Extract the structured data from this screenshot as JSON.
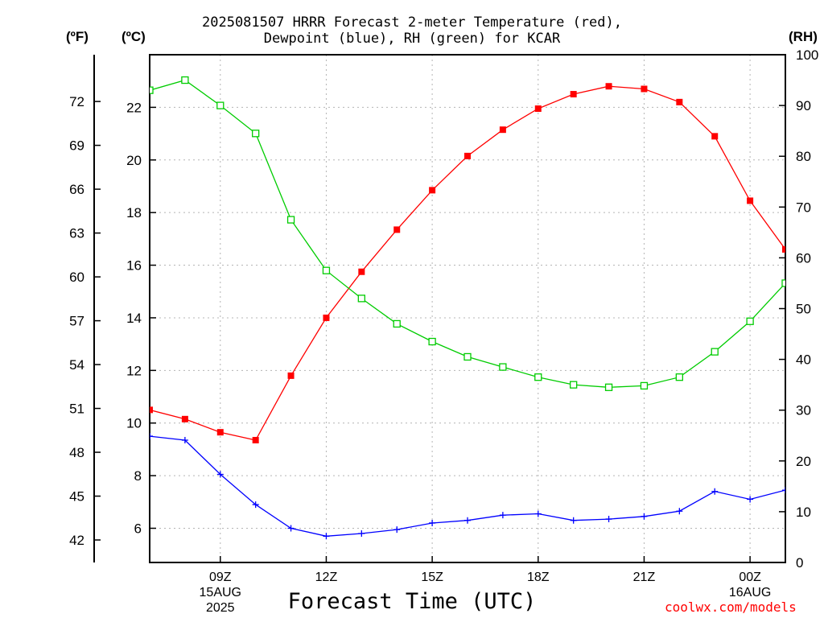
{
  "title_line1": "2025081507 HRRR Forecast 2-meter Temperature (red),",
  "title_line2": "Dewpoint (blue), RH (green) for KCAR",
  "units": {
    "f": "(ºF)",
    "c": "(ºC)",
    "rh": "(RH)"
  },
  "xlabel": "Forecast Time (UTC)",
  "credit": "coolwx.com/models",
  "colors": {
    "temperature": "#ff0000",
    "dewpoint": "#0000ff",
    "rh": "#00cc00",
    "grid": "#b4b4b4"
  },
  "chart_data": {
    "type": "line",
    "x_hours": [
      7,
      8,
      9,
      10,
      11,
      12,
      13,
      14,
      15,
      16,
      17,
      18,
      19,
      20,
      21,
      22,
      23,
      24,
      25
    ],
    "x_range": [
      7,
      25
    ],
    "series": [
      {
        "name": "2-meter Temperature",
        "axis": "celsius",
        "color": "red",
        "marker": "filled-square",
        "values": [
          10.5,
          10.15,
          9.65,
          9.35,
          11.8,
          14.0,
          15.75,
          17.35,
          18.85,
          20.15,
          21.15,
          21.95,
          22.5,
          22.8,
          22.7,
          22.2,
          20.9,
          18.45,
          16.6
        ]
      },
      {
        "name": "Dewpoint",
        "axis": "celsius",
        "color": "blue",
        "marker": "plus",
        "values": [
          9.5,
          9.35,
          8.05,
          6.9,
          6.0,
          5.7,
          5.8,
          5.95,
          6.2,
          6.3,
          6.5,
          6.55,
          6.3,
          6.35,
          6.45,
          6.65,
          7.4,
          7.1,
          7.45
        ]
      },
      {
        "name": "RH",
        "axis": "rh",
        "color": "green",
        "marker": "open-square",
        "values": [
          93,
          95,
          90,
          84.5,
          67.5,
          57.5,
          52,
          47,
          43.5,
          40.5,
          38.5,
          36.5,
          35,
          34.5,
          34.8,
          36.5,
          41.5,
          47.5,
          55
        ]
      }
    ],
    "y_celsius": {
      "ticks": [
        6,
        8,
        10,
        12,
        14,
        16,
        18,
        20,
        22
      ],
      "range": [
        4.7,
        24.0
      ]
    },
    "y_fahrenheit": {
      "ticks": [
        42,
        45,
        48,
        51,
        54,
        57,
        60,
        63,
        66,
        69,
        72
      ]
    },
    "y_rh": {
      "ticks": [
        0,
        10,
        20,
        30,
        40,
        50,
        60,
        70,
        80,
        90,
        100
      ],
      "range": [
        0,
        100
      ]
    },
    "x_ticks": [
      {
        "hour": 9,
        "lines": [
          "09Z",
          "15AUG",
          "2025"
        ]
      },
      {
        "hour": 12,
        "lines": [
          "12Z"
        ]
      },
      {
        "hour": 15,
        "lines": [
          "15Z"
        ]
      },
      {
        "hour": 18,
        "lines": [
          "18Z"
        ]
      },
      {
        "hour": 21,
        "lines": [
          "21Z"
        ]
      },
      {
        "hour": 24,
        "lines": [
          "00Z",
          "16AUG"
        ]
      }
    ],
    "grid": true
  }
}
